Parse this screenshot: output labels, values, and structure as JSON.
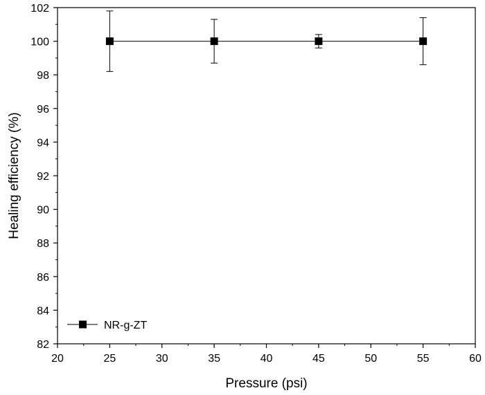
{
  "chart_data": {
    "type": "scatter",
    "title": "",
    "xlabel": "Pressure (psi)",
    "ylabel": "Healing efficiency (%)",
    "xlim": [
      20,
      60
    ],
    "ylim": [
      82,
      102
    ],
    "xticks": [
      20,
      25,
      30,
      35,
      40,
      45,
      50,
      55,
      60
    ],
    "yticks": [
      82,
      84,
      86,
      88,
      90,
      92,
      94,
      96,
      98,
      100,
      102
    ],
    "grid": false,
    "legend_position": "bottom-left",
    "series": [
      {
        "name": "NR-g-ZT",
        "marker": "square",
        "line": true,
        "color": "#000000",
        "x": [
          25,
          35,
          45,
          55
        ],
        "y": [
          100,
          100,
          100,
          100
        ],
        "yerr_low": [
          98.2,
          98.7,
          99.6,
          98.6
        ],
        "yerr_high": [
          101.8,
          101.3,
          100.4,
          101.4
        ]
      }
    ]
  }
}
